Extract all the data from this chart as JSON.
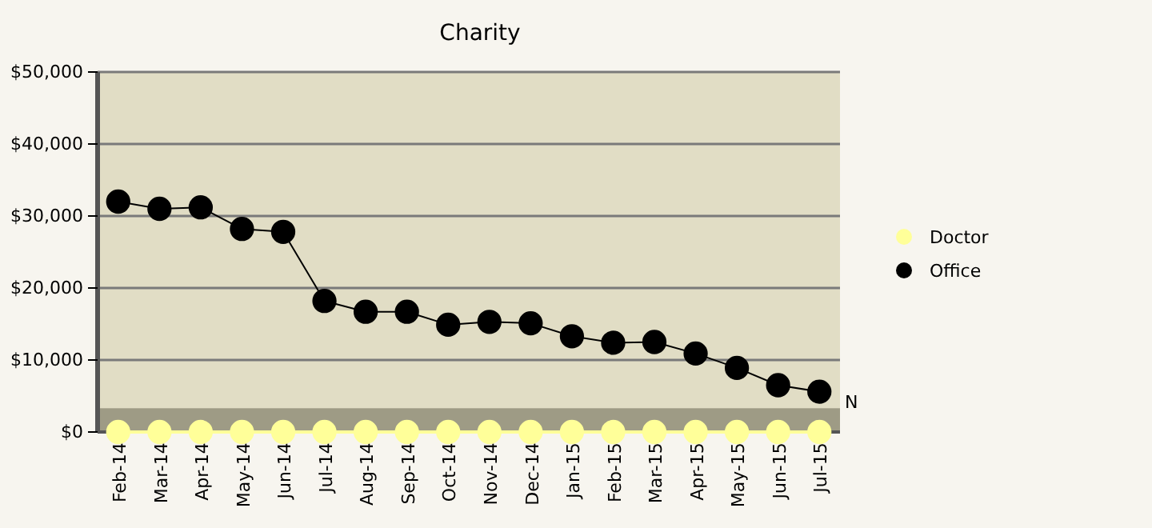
{
  "chart_data": {
    "type": "line",
    "title": "Charity",
    "categories": [
      "Feb-14",
      "Mar-14",
      "Apr-14",
      "May-14",
      "Jun-14",
      "Jul-14",
      "Aug-14",
      "Sep-14",
      "Oct-14",
      "Nov-14",
      "Dec-14",
      "Jan-15",
      "Feb-15",
      "Mar-15",
      "Apr-15",
      "May-15",
      "Jun-15",
      "Jul-15"
    ],
    "series": [
      {
        "name": "Doctor",
        "color": "#ffff99",
        "values": [
          0,
          0,
          0,
          0,
          0,
          0,
          0,
          0,
          0,
          0,
          0,
          0,
          0,
          0,
          0,
          0,
          0,
          0
        ]
      },
      {
        "name": "Office",
        "color": "#000000",
        "values": [
          32000,
          31000,
          31200,
          28200,
          27800,
          18200,
          16700,
          16700,
          14900,
          15300,
          15100,
          13300,
          12400,
          12500,
          10900,
          8900,
          6500,
          5600
        ]
      }
    ],
    "ylim": [
      0,
      50000
    ],
    "yticks": [
      {
        "value": 0,
        "label": "$0"
      },
      {
        "value": 10000,
        "label": "$10,000"
      },
      {
        "value": 20000,
        "label": "$20,000"
      },
      {
        "value": 30000,
        "label": "$30,000"
      },
      {
        "value": 40000,
        "label": "$40,000"
      },
      {
        "value": 50000,
        "label": "$50,000"
      }
    ],
    "bands": [
      {
        "axis": "y",
        "from": 0,
        "to": 3300,
        "label": "N",
        "color": "#9e9b85"
      }
    ],
    "grid": "y",
    "legend": "right",
    "marker": "circle",
    "line_style": "solid"
  }
}
